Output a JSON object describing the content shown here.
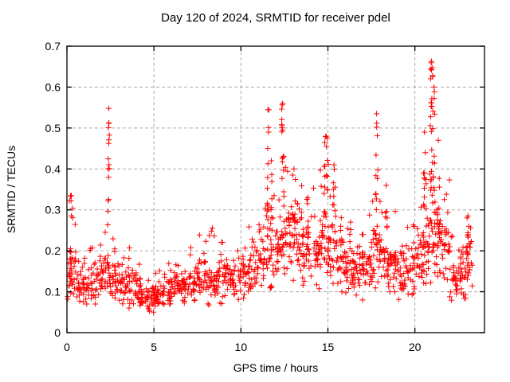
{
  "background_color": "#ffffff",
  "chart_data": {
    "type": "scatter",
    "title": "Day 120 of 2024, SRMTID for receiver pdel",
    "xlabel": "GPS time / hours",
    "ylabel": "SRMTID / TECUs",
    "xlim": [
      0,
      24
    ],
    "ylim": [
      0,
      0.7
    ],
    "xticks": [
      0,
      5,
      10,
      15,
      20
    ],
    "xtick_labels": [
      "0",
      "5",
      "10",
      "15",
      "20"
    ],
    "yticks": [
      0,
      0.1,
      0.2,
      0.3,
      0.4,
      0.5,
      0.6,
      0.7
    ],
    "ytick_labels": [
      "0",
      "0.1",
      "0.2",
      "0.3",
      "0.4",
      "0.5",
      "0.6",
      "0.7"
    ],
    "legend": "none",
    "grid": {
      "show": true,
      "color": "#aaaaaa",
      "dash": [
        4,
        3
      ]
    },
    "border_color": "#000000",
    "marker": {
      "shape": "plus",
      "color": "#ff0000",
      "size": 7,
      "stroke_width": 1
    },
    "series_name": "SRMTID",
    "seed": 20241201,
    "baseline_bins": [
      [
        0.0,
        0.5,
        30,
        0.08,
        0.15,
        0.33
      ],
      [
        0.5,
        1.0,
        28,
        0.07,
        0.12,
        0.2
      ],
      [
        1.0,
        1.5,
        28,
        0.07,
        0.12,
        0.25
      ],
      [
        1.5,
        2.0,
        28,
        0.07,
        0.12,
        0.22
      ],
      [
        2.0,
        2.5,
        28,
        0.08,
        0.13,
        0.27
      ],
      [
        2.5,
        3.0,
        28,
        0.08,
        0.13,
        0.25
      ],
      [
        3.0,
        3.5,
        28,
        0.07,
        0.11,
        0.2
      ],
      [
        3.5,
        4.0,
        28,
        0.06,
        0.11,
        0.25
      ],
      [
        4.0,
        4.5,
        28,
        0.05,
        0.09,
        0.17
      ],
      [
        4.5,
        5.0,
        28,
        0.05,
        0.08,
        0.15
      ],
      [
        5.0,
        5.5,
        28,
        0.05,
        0.09,
        0.16
      ],
      [
        5.5,
        6.0,
        28,
        0.06,
        0.1,
        0.17
      ],
      [
        6.0,
        6.5,
        28,
        0.07,
        0.11,
        0.19
      ],
      [
        6.5,
        7.0,
        28,
        0.07,
        0.11,
        0.2
      ],
      [
        7.0,
        7.5,
        28,
        0.07,
        0.12,
        0.22
      ],
      [
        7.5,
        8.0,
        28,
        0.07,
        0.13,
        0.27
      ],
      [
        8.0,
        8.5,
        28,
        0.06,
        0.12,
        0.28
      ],
      [
        8.5,
        9.0,
        28,
        0.07,
        0.12,
        0.24
      ],
      [
        9.0,
        9.5,
        28,
        0.08,
        0.13,
        0.22
      ],
      [
        9.5,
        10.0,
        28,
        0.08,
        0.13,
        0.24
      ],
      [
        10.0,
        10.5,
        28,
        0.08,
        0.14,
        0.26
      ],
      [
        10.5,
        11.0,
        28,
        0.08,
        0.15,
        0.3
      ],
      [
        11.0,
        11.5,
        28,
        0.1,
        0.17,
        0.32
      ],
      [
        11.5,
        12.0,
        28,
        0.1,
        0.18,
        0.35
      ],
      [
        12.0,
        12.5,
        30,
        0.12,
        0.2,
        0.4
      ],
      [
        12.5,
        13.0,
        30,
        0.12,
        0.22,
        0.42
      ],
      [
        13.0,
        13.5,
        28,
        0.12,
        0.22,
        0.38
      ],
      [
        13.5,
        14.0,
        28,
        0.1,
        0.18,
        0.33
      ],
      [
        14.0,
        14.5,
        28,
        0.1,
        0.18,
        0.38
      ],
      [
        14.5,
        15.0,
        30,
        0.12,
        0.22,
        0.45
      ],
      [
        15.0,
        15.5,
        30,
        0.12,
        0.22,
        0.42
      ],
      [
        15.5,
        16.0,
        28,
        0.1,
        0.18,
        0.35
      ],
      [
        16.0,
        16.5,
        28,
        0.08,
        0.14,
        0.27
      ],
      [
        16.5,
        17.0,
        28,
        0.08,
        0.14,
        0.25
      ],
      [
        17.0,
        17.5,
        28,
        0.1,
        0.16,
        0.3
      ],
      [
        17.5,
        18.0,
        28,
        0.1,
        0.18,
        0.35
      ],
      [
        18.0,
        18.5,
        28,
        0.1,
        0.17,
        0.32
      ],
      [
        18.5,
        19.0,
        28,
        0.1,
        0.16,
        0.3
      ],
      [
        19.0,
        19.5,
        28,
        0.08,
        0.15,
        0.26
      ],
      [
        19.5,
        20.0,
        28,
        0.08,
        0.15,
        0.27
      ],
      [
        20.0,
        20.5,
        28,
        0.1,
        0.17,
        0.35
      ],
      [
        20.5,
        21.0,
        30,
        0.12,
        0.22,
        0.45
      ],
      [
        21.0,
        21.5,
        30,
        0.12,
        0.22,
        0.45
      ],
      [
        21.5,
        22.0,
        28,
        0.12,
        0.2,
        0.38
      ],
      [
        22.0,
        22.5,
        28,
        0.07,
        0.13,
        0.25
      ],
      [
        22.5,
        23.0,
        28,
        0.07,
        0.13,
        0.22
      ],
      [
        23.0,
        23.3,
        20,
        0.1,
        0.17,
        0.28
      ]
    ],
    "spikes": [
      [
        0.25,
        0.2,
        12,
        0.15,
        0.335
      ],
      [
        2.4,
        0.12,
        16,
        0.16,
        0.548
      ],
      [
        11.55,
        0.12,
        14,
        0.2,
        0.545
      ],
      [
        11.75,
        0.1,
        6,
        0.2,
        0.42
      ],
      [
        12.4,
        0.15,
        20,
        0.2,
        0.56
      ],
      [
        13.05,
        0.2,
        10,
        0.2,
        0.4
      ],
      [
        13.85,
        0.15,
        8,
        0.15,
        0.33
      ],
      [
        14.9,
        0.25,
        16,
        0.18,
        0.48
      ],
      [
        15.35,
        0.15,
        8,
        0.18,
        0.41
      ],
      [
        16.3,
        0.1,
        5,
        0.15,
        0.27
      ],
      [
        17.8,
        0.15,
        16,
        0.18,
        0.535
      ],
      [
        18.35,
        0.15,
        8,
        0.15,
        0.36
      ],
      [
        20.55,
        0.2,
        12,
        0.2,
        0.49
      ],
      [
        20.95,
        0.18,
        28,
        0.25,
        0.663
      ],
      [
        21.1,
        0.12,
        10,
        0.3,
        0.6
      ],
      [
        21.35,
        0.15,
        10,
        0.2,
        0.47
      ],
      [
        23.05,
        0.15,
        10,
        0.12,
        0.285
      ]
    ]
  }
}
